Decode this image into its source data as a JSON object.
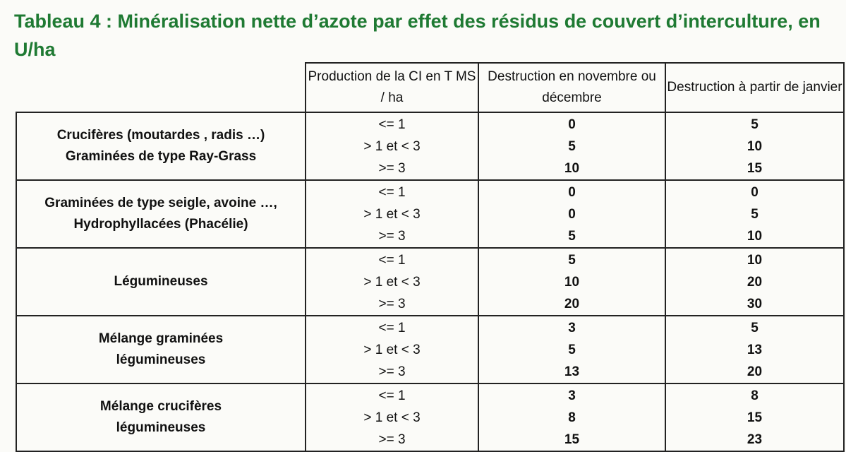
{
  "title": "Tableau 4 : Minéralisation nette d’azote par effet des résidus de couvert d’interculture, en U/ha",
  "headers": {
    "production": "Production de la CI en T MS / ha",
    "destruction_nov_dec": "Destruction en novembre ou décembre",
    "destruction_janvier": "Destruction à partir de janvier"
  },
  "production_levels": [
    "<= 1",
    "> 1 et < 3",
    ">= 3"
  ],
  "rows": [
    {
      "category_line1": "Crucifères (moutardes , radis …)",
      "category_line2": "Graminées de type Ray-Grass",
      "nov_dec": [
        "0",
        "5",
        "10"
      ],
      "janvier": [
        "5",
        "10",
        "15"
      ]
    },
    {
      "category_line1": "Graminées de type seigle, avoine …,",
      "category_line2": "Hydrophyllacées (Phacélie)",
      "nov_dec": [
        "0",
        "0",
        "5"
      ],
      "janvier": [
        "0",
        "5",
        "10"
      ]
    },
    {
      "category_line1": "Légumineuses",
      "category_line2": "",
      "nov_dec": [
        "5",
        "10",
        "20"
      ],
      "janvier": [
        "10",
        "20",
        "30"
      ]
    },
    {
      "category_line1": "Mélange graminées",
      "category_line2": "légumineuses",
      "nov_dec": [
        "3",
        "5",
        "13"
      ],
      "janvier": [
        "5",
        "13",
        "20"
      ]
    },
    {
      "category_line1": "Mélange crucifères",
      "category_line2": "légumineuses",
      "nov_dec": [
        "3",
        "8",
        "15"
      ],
      "janvier": [
        "8",
        "15",
        "23"
      ]
    }
  ]
}
